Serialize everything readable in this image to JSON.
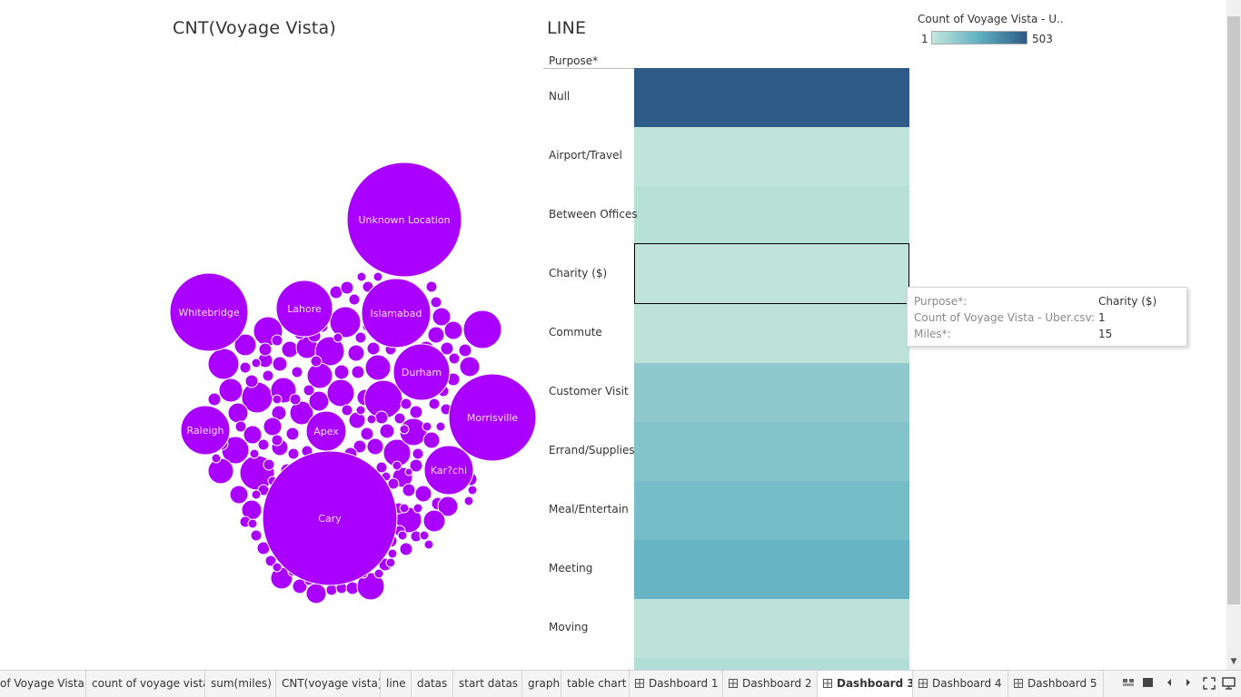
{
  "titles": {
    "bubble_chart": "CNT(Voyage Vista)",
    "heat_chart": "LINE"
  },
  "heatmap": {
    "column_header": "Purpose*",
    "rows": [
      {
        "label": "Null",
        "color": "#2d5a86"
      },
      {
        "label": "Airport/Travel",
        "color": "#bfe4d9"
      },
      {
        "label": "Between Offices",
        "color": "#b8e1d6"
      },
      {
        "label": "Charity ($)",
        "color": "#bfe4d9"
      },
      {
        "label": "Commute",
        "color": "#bde3d8"
      },
      {
        "label": "Customer Visit",
        "color": "#8fc9cd"
      },
      {
        "label": "Errand/Supplies",
        "color": "#83c3ca"
      },
      {
        "label": "Meal/Entertain",
        "color": "#76bdc7"
      },
      {
        "label": "Meeting",
        "color": "#66b4c4"
      },
      {
        "label": "Moving",
        "color": "#bde3d8"
      },
      {
        "label": "",
        "color": "#b2ded5"
      }
    ],
    "selected_row": "Charity ($)"
  },
  "legend": {
    "title": "Count of Voyage Vista - U..",
    "min": "1",
    "max": "503",
    "colors": [
      "#c4e6dd",
      "#5fb0c2",
      "#2d5a86"
    ]
  },
  "tooltip": {
    "rows": [
      {
        "key": "Purpose*:",
        "value": "Charity ($)"
      },
      {
        "key": "Count of Voyage Vista - Uber.csv:",
        "value": "1"
      },
      {
        "key": "Miles*:",
        "value": "15"
      }
    ]
  },
  "bubbles": {
    "color": "#aa00ff",
    "labeled": [
      {
        "label": "Unknown Location",
        "cx": 445,
        "cy": 242,
        "r": 63
      },
      {
        "label": "Whitebridge",
        "cx": 230,
        "cy": 344,
        "r": 43
      },
      {
        "label": "Lahore",
        "cx": 335,
        "cy": 340,
        "r": 31
      },
      {
        "label": "Islamabad",
        "cx": 436,
        "cy": 345,
        "r": 38
      },
      {
        "label": "Durham",
        "cx": 464,
        "cy": 410,
        "r": 31
      },
      {
        "label": "Morrisville",
        "cx": 542,
        "cy": 460,
        "r": 48
      },
      {
        "label": "Raleigh",
        "cx": 226,
        "cy": 474,
        "r": 27
      },
      {
        "label": "Apex",
        "cx": 359,
        "cy": 475,
        "r": 22
      },
      {
        "label": "Kar?chi",
        "cx": 494,
        "cy": 518,
        "r": 27
      },
      {
        "label": "Cary",
        "cx": 363,
        "cy": 571,
        "r": 74
      }
    ]
  },
  "tabs": [
    {
      "label": "of Voyage Vista",
      "dashboard": false,
      "active": false
    },
    {
      "label": "count of voyage vista",
      "dashboard": false,
      "active": false
    },
    {
      "label": "sum(miles)",
      "dashboard": false,
      "active": false
    },
    {
      "label": "CNT(voyage vista)",
      "dashboard": false,
      "active": false
    },
    {
      "label": "line",
      "dashboard": false,
      "active": false
    },
    {
      "label": "datas",
      "dashboard": false,
      "active": false
    },
    {
      "label": "start datas",
      "dashboard": false,
      "active": false
    },
    {
      "label": "graph",
      "dashboard": false,
      "active": false
    },
    {
      "label": "table chart",
      "dashboard": false,
      "active": false
    },
    {
      "label": "Dashboard 1",
      "dashboard": true,
      "active": false
    },
    {
      "label": "Dashboard 2",
      "dashboard": true,
      "active": false
    },
    {
      "label": "Dashboard 3",
      "dashboard": true,
      "active": true
    },
    {
      "label": "Dashboard 4",
      "dashboard": true,
      "active": false
    },
    {
      "label": "Dashboard 5",
      "dashboard": true,
      "active": false
    }
  ],
  "bottom_icons": [
    "show-sheet-sorter-icon",
    "show-filmstrip-icon",
    "previous-sheet-icon",
    "next-sheet-icon",
    "fullscreen-icon",
    "presentation-mode-icon"
  ]
}
